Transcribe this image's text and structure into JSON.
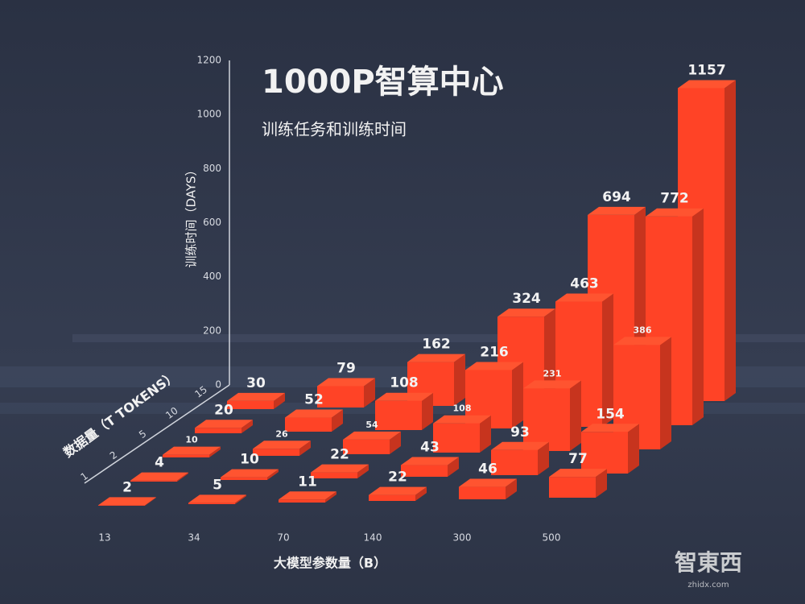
{
  "chart_data": {
    "type": "bar3d",
    "title": "1000P智算中心",
    "subtitle": "训练任务和训练时间",
    "y_label": "训练时间（DAYS）",
    "x_label": "大模型参数量（B）",
    "z_label": "数据量（T TOKENS）",
    "categories": [
      "13",
      "34",
      "70",
      "140",
      "300",
      "500"
    ],
    "series": [
      {
        "name": "1",
        "values": [
          2,
          5,
          11,
          22,
          46,
          77
        ]
      },
      {
        "name": "2",
        "values": [
          4,
          10,
          22,
          43,
          93,
          154
        ]
      },
      {
        "name": "5",
        "values": [
          10,
          26,
          54,
          108,
          231,
          386
        ]
      },
      {
        "name": "10",
        "values": [
          20,
          52,
          108,
          216,
          463,
          772
        ]
      },
      {
        "name": "15",
        "values": [
          30,
          79,
          162,
          324,
          694,
          1157
        ]
      }
    ],
    "color": "#ff4326",
    "ylim": [
      0,
      1200
    ],
    "yticks": [
      0,
      200,
      400,
      600,
      800,
      1000,
      1200
    ]
  },
  "watermark": {
    "logo": "智東西",
    "site": "zhidx.com"
  }
}
